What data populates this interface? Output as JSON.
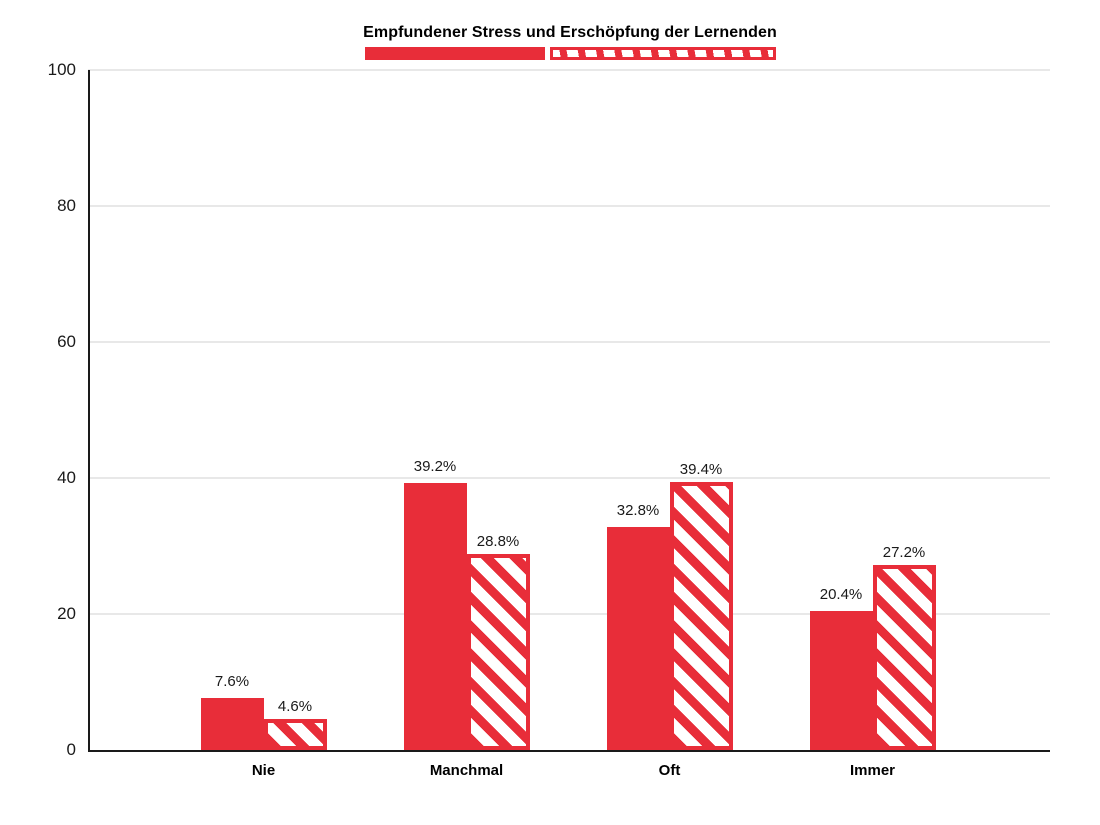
{
  "chart_data": {
    "type": "bar",
    "title": "Empfundener Stress und Erschöpfung der Lernenden",
    "categories": [
      "Nie",
      "Manchmal",
      "Oft",
      "Immer"
    ],
    "series": [
      {
        "name": "stress-solid",
        "style": "solid",
        "values": [
          7.6,
          39.2,
          32.8,
          20.4
        ],
        "labels": [
          "7.6%",
          "39.2%",
          "32.8%",
          "20.4%"
        ]
      },
      {
        "name": "erschoepfung-hatched",
        "style": "hatched",
        "values": [
          4.6,
          28.8,
          39.4,
          27.2
        ],
        "labels": [
          "4.6%",
          "28.8%",
          "39.4%",
          "27.2%"
        ]
      }
    ],
    "ylim": [
      0,
      100
    ],
    "yticks": [
      0,
      20,
      40,
      60,
      80,
      100
    ],
    "grid": "horizontal",
    "legend_position": "top-center",
    "legend_items": [
      {
        "name": "solid-red-swatch",
        "style": "solid"
      },
      {
        "name": "hatched-red-swatch",
        "style": "hatched"
      }
    ],
    "value_label_suffix": "%"
  },
  "colors": {
    "bar_red": "#E82D39",
    "grid": "#E8E8E8",
    "axis": "#1A1A1A",
    "text": "#000000"
  }
}
